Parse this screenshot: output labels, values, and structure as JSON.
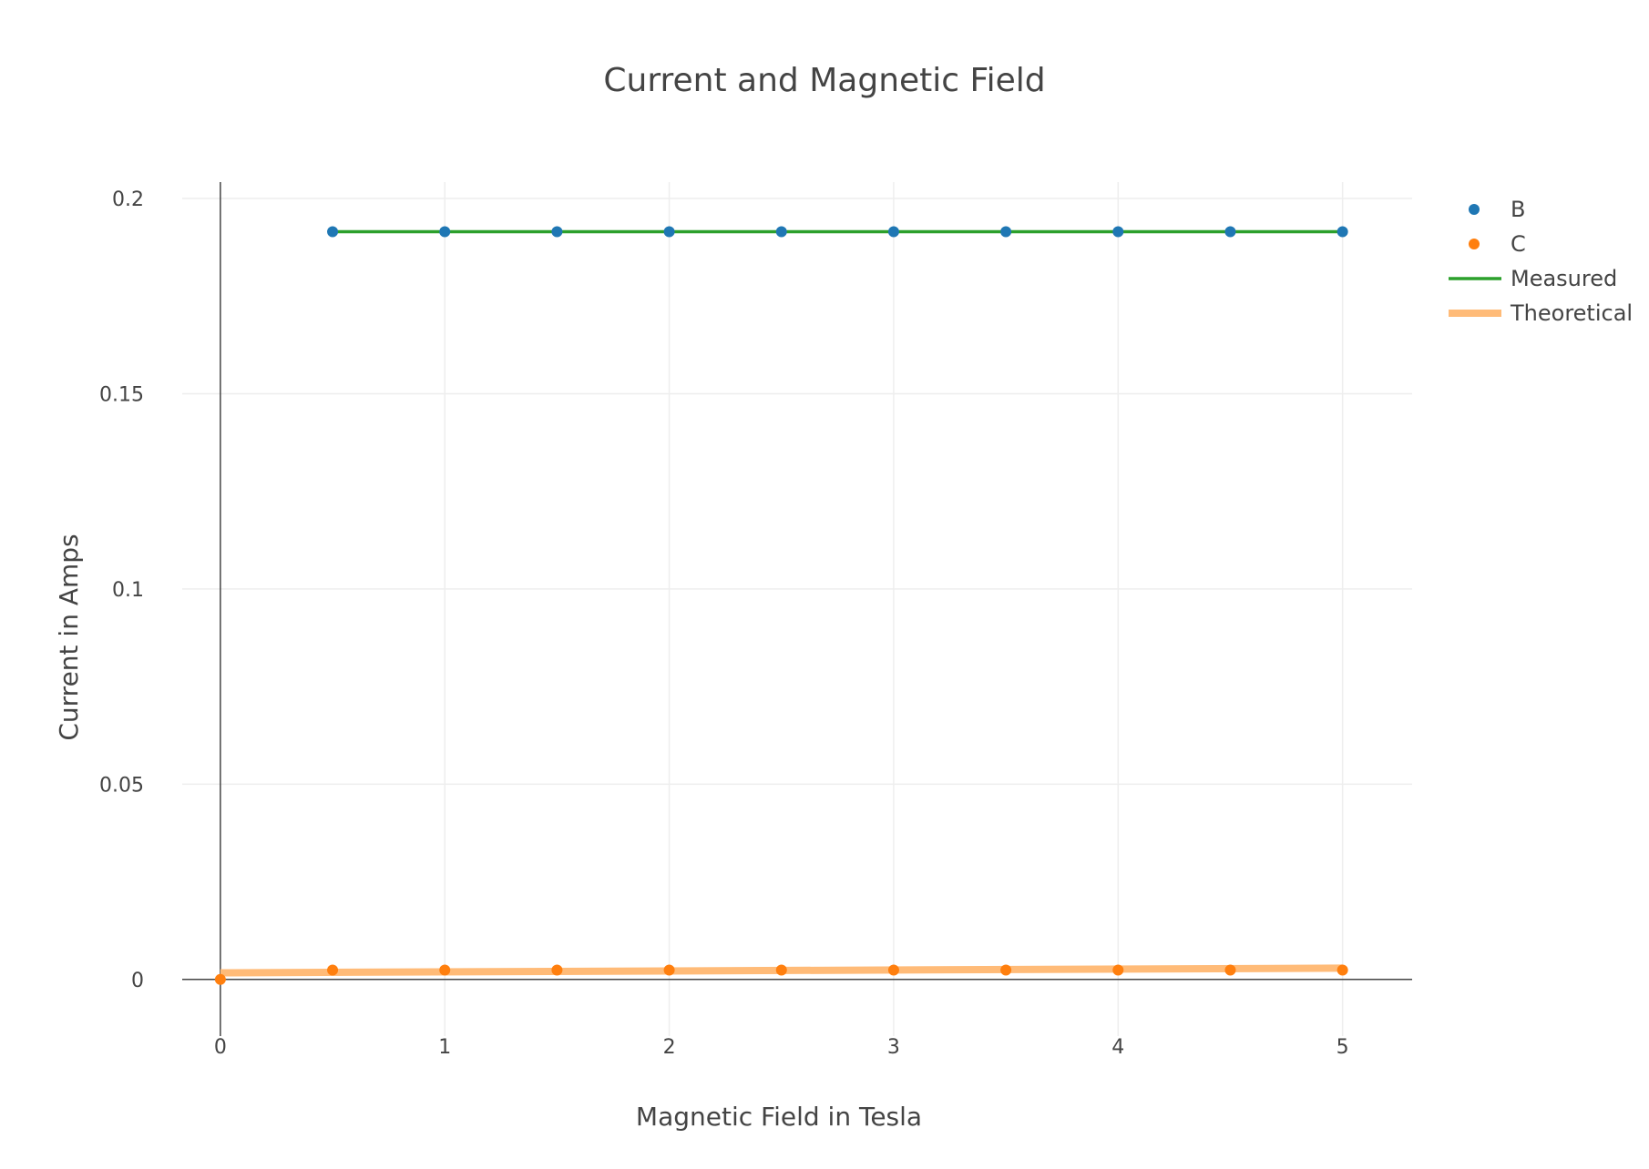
{
  "chart_data": {
    "type": "scatter",
    "title": "Current and Magnetic Field",
    "xlabel": "Magnetic Field in Tesla",
    "ylabel": "Current in Amps",
    "xlim": [
      -0.17,
      5.31
    ],
    "ylim": [
      -0.0145,
      0.2042
    ],
    "x_ticks": [
      0,
      1,
      2,
      3,
      4,
      5
    ],
    "x_tick_labels": [
      "0",
      "1",
      "2",
      "3",
      "4",
      "5"
    ],
    "y_ticks": [
      0,
      0.05,
      0.1,
      0.15,
      0.2
    ],
    "y_tick_labels": [
      "0",
      "0.05",
      "0.1",
      "0.15",
      "0.2"
    ],
    "grid": true,
    "legend_position": "top-right",
    "series": [
      {
        "name": "B",
        "mode": "markers",
        "color": "#1f77b4",
        "x": [
          0.5,
          1,
          1.5,
          2,
          2.5,
          3,
          3.5,
          4,
          4.5,
          5
        ],
        "y": [
          0.1915,
          0.1915,
          0.1915,
          0.1915,
          0.1915,
          0.1915,
          0.1915,
          0.1915,
          0.1915,
          0.1915
        ]
      },
      {
        "name": "C",
        "mode": "markers",
        "color": "#ff7f0e",
        "x": [
          0,
          0.5,
          1,
          1.5,
          2,
          2.5,
          3,
          3.5,
          4,
          4.5,
          5
        ],
        "y": [
          0,
          0.0024,
          0.0024,
          0.0024,
          0.0024,
          0.0024,
          0.0024,
          0.0024,
          0.0024,
          0.0024,
          0.0024
        ]
      },
      {
        "name": "Measured",
        "mode": "lines",
        "color": "#2ca02c",
        "x": [
          0.5,
          5
        ],
        "y": [
          0.1915,
          0.1915
        ]
      },
      {
        "name": "Theoretical",
        "mode": "lines",
        "color": "#ffbb78",
        "x": [
          0,
          5
        ],
        "y": [
          0.0017,
          0.0029
        ]
      }
    ]
  }
}
